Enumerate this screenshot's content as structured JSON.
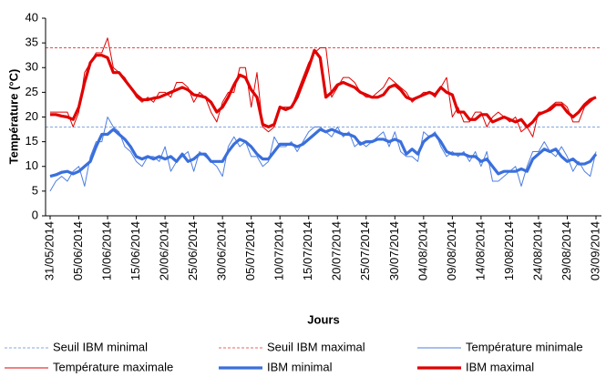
{
  "chart_data": {
    "type": "line",
    "y_label": "Température (°C)",
    "x_label": "Jours",
    "categories": [
      "31/05/2014",
      null,
      null,
      null,
      null,
      "05/06/2014",
      null,
      null,
      null,
      null,
      "10/06/2014",
      null,
      null,
      null,
      null,
      "15/06/2014",
      null,
      null,
      null,
      null,
      "20/06/2014",
      null,
      null,
      null,
      null,
      "25/06/2014",
      null,
      null,
      null,
      null,
      "30/06/2014",
      null,
      null,
      null,
      null,
      "05/07/2014",
      null,
      null,
      null,
      null,
      "10/07/2014",
      null,
      null,
      null,
      null,
      "15/07/2014",
      null,
      null,
      null,
      null,
      "20/07/2014",
      null,
      null,
      null,
      null,
      "25/07/2014",
      null,
      null,
      null,
      null,
      "30/07/2014",
      null,
      null,
      null,
      null,
      "04/08/2014",
      null,
      null,
      null,
      null,
      "09/08/2014",
      null,
      null,
      null,
      null,
      "14/08/2014",
      null,
      null,
      null,
      null,
      "19/08/2014",
      null,
      null,
      null,
      null,
      "24/08/2014",
      null,
      null,
      null,
      null,
      "29/08/2014",
      null,
      null,
      null,
      null,
      "03/09/2014"
    ],
    "ylim": [
      0,
      40
    ],
    "yticks": [
      0,
      5,
      10,
      15,
      20,
      25,
      30,
      35,
      40
    ],
    "grid": false,
    "series": [
      {
        "name": "Seuil IBM minimal",
        "color": "#5b8bd6",
        "style": "dashed",
        "value": 18
      },
      {
        "name": "Seuil IBM maximal",
        "color": "#e83030",
        "style": "dashed",
        "value": 34
      },
      {
        "name": "Température minimale",
        "color": "#4f7fe0",
        "style": "thin",
        "values": [
          5,
          7,
          8,
          7,
          9,
          10,
          6,
          12,
          15,
          15,
          20,
          18,
          17,
          14,
          13,
          11,
          10,
          12,
          12,
          11,
          14,
          9,
          11,
          12,
          13,
          9,
          13,
          12,
          11,
          10,
          8,
          14,
          16,
          14,
          15,
          12,
          12,
          10,
          11,
          16,
          14,
          14,
          15,
          13,
          15,
          17,
          18,
          18,
          17,
          16,
          18,
          16,
          17,
          14,
          15,
          14,
          15,
          16,
          17,
          14,
          17,
          13,
          12,
          12,
          11,
          17,
          16,
          17,
          14,
          12,
          13,
          12,
          13,
          11,
          13,
          10,
          13,
          7,
          7,
          8,
          9,
          10,
          6,
          10,
          13,
          13,
          15,
          13,
          12,
          14,
          12,
          9,
          11,
          9,
          8,
          13
        ]
      },
      {
        "name": "Température maximale",
        "color": "#e00000",
        "style": "thin",
        "values": [
          21,
          21,
          21,
          21,
          18,
          21,
          29,
          31,
          33,
          33,
          36,
          30,
          29,
          28,
          26,
          24,
          23,
          24,
          23,
          25,
          25,
          24,
          27,
          27,
          26,
          23,
          25,
          24,
          21,
          19,
          23,
          25,
          25,
          30,
          30,
          22,
          29,
          18,
          17,
          18,
          22,
          22,
          22,
          25,
          28,
          31,
          33,
          34,
          34,
          24,
          26,
          28,
          28,
          27,
          25,
          24,
          24,
          25,
          26,
          28,
          27,
          26,
          25,
          23,
          24,
          25,
          25,
          24,
          26,
          28,
          20,
          22,
          19,
          19,
          21,
          21,
          18,
          20,
          21,
          20,
          19,
          20,
          17,
          18,
          16,
          21,
          21,
          22,
          23,
          23,
          22,
          19,
          19,
          22,
          23,
          24
        ]
      },
      {
        "name": "IBM minimal",
        "color": "#3a6fdc",
        "style": "thick",
        "values": [
          8,
          8.3,
          8.8,
          9,
          8.5,
          9,
          10,
          11,
          14,
          16.5,
          16.5,
          17.5,
          16.5,
          15.5,
          14,
          12,
          11.5,
          12,
          11.5,
          12,
          11.5,
          12,
          11,
          12.5,
          11,
          11.5,
          12.5,
          12.5,
          11,
          11,
          11,
          13,
          14.5,
          15.5,
          15,
          14,
          12.5,
          11.5,
          11.5,
          13,
          14.5,
          14.5,
          14.5,
          14,
          14.5,
          15.5,
          16.5,
          17.5,
          17,
          17.5,
          17,
          16.5,
          16.5,
          16,
          14.5,
          15,
          15,
          15.5,
          15.5,
          15,
          15.5,
          15,
          12.5,
          13.5,
          12.5,
          15,
          16,
          16.5,
          15,
          13,
          12.5,
          12.5,
          12.5,
          12,
          12,
          11,
          11.5,
          10,
          8.5,
          9,
          9,
          9,
          9.5,
          9,
          11.5,
          12.5,
          13.5,
          13,
          13.5,
          12,
          11,
          11.5,
          10.5,
          10.5,
          11,
          12.5
        ]
      },
      {
        "name": "IBM maximal",
        "color": "#e00000",
        "style": "thick",
        "values": [
          20.5,
          20.5,
          20.2,
          20,
          19.5,
          22,
          27,
          31,
          32.5,
          32.5,
          32,
          29,
          29,
          27.5,
          26,
          24.5,
          23.5,
          23.5,
          23.8,
          24,
          24.5,
          25,
          25.5,
          26,
          25.5,
          24.5,
          24.3,
          24,
          23,
          21,
          22,
          24,
          26.5,
          28.5,
          28,
          25.5,
          24,
          18.5,
          18,
          18.5,
          22,
          21.5,
          22,
          24,
          27,
          30,
          33.5,
          32,
          24,
          25,
          26.5,
          27,
          26.5,
          26,
          25,
          24.5,
          24,
          24,
          24.5,
          26,
          26.5,
          25.5,
          24,
          23.5,
          24,
          24.5,
          25,
          24.5,
          26,
          25,
          24.5,
          21,
          21,
          19.5,
          19.5,
          20.5,
          20.5,
          19,
          19.5,
          20,
          19.5,
          19,
          19.5,
          18,
          19,
          20.5,
          21,
          21.5,
          22.5,
          22.5,
          21,
          20,
          21,
          22.5,
          23.5,
          24
        ]
      }
    ]
  }
}
